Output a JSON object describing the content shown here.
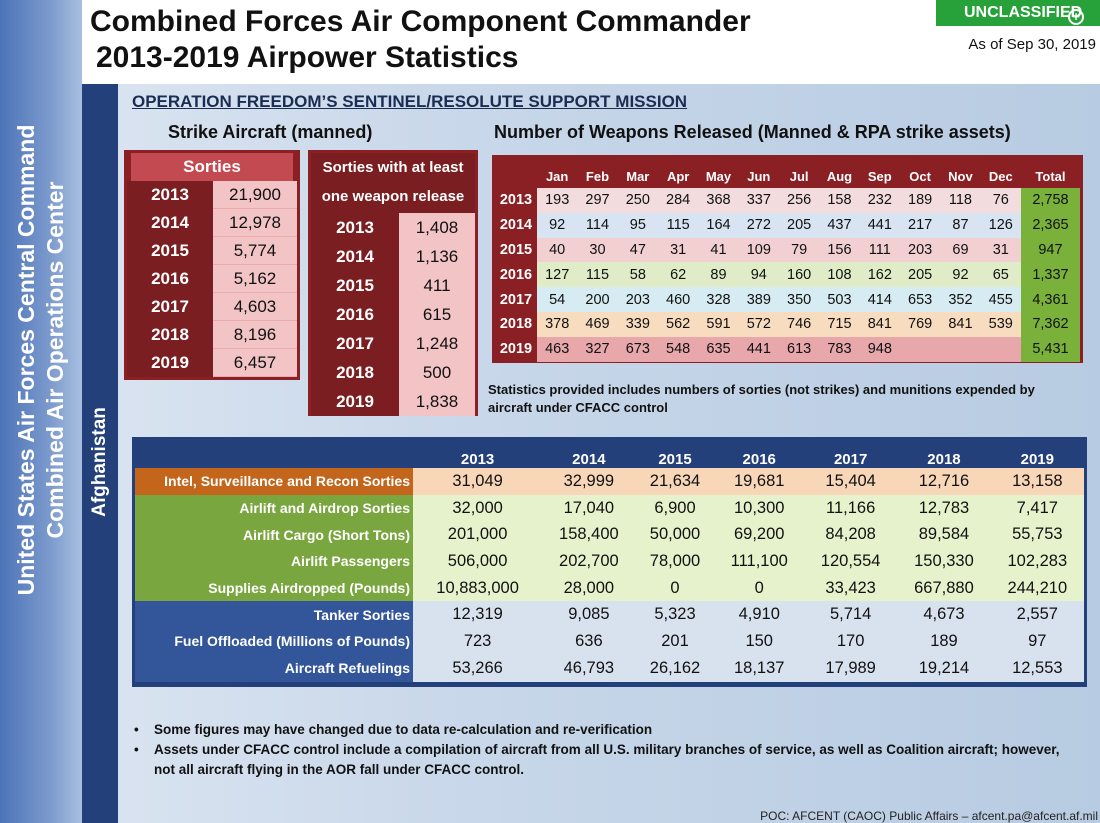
{
  "sidebar": {
    "line1": "United States Air Forces Central Command",
    "line2": "Combined Air Operations Center",
    "region": "Afghanistan"
  },
  "header": {
    "title_line1": "Combined Forces Air Component Commander",
    "title_line2": "2013-2019 Airpower Statistics",
    "classification": "UNCLASSIFIED",
    "as_of": "As of Sep 30, 2019"
  },
  "mission_title": "OPERATION FREEDOM’S SENTINEL/RESOLUTE SUPPORT MISSION",
  "strike_heading": "Strike Aircraft (manned)",
  "weapons_heading": "Number of Weapons Released (Manned & RPA strike assets)",
  "sorties": {
    "header": "Sorties",
    "rows": [
      {
        "year": "2013",
        "value": "21,900"
      },
      {
        "year": "2014",
        "value": "12,978"
      },
      {
        "year": "2015",
        "value": "5,774"
      },
      {
        "year": "2016",
        "value": "5,162"
      },
      {
        "year": "2017",
        "value": "4,603"
      },
      {
        "year": "2018",
        "value": "8,196"
      },
      {
        "year": "2019",
        "value": "6,457"
      }
    ]
  },
  "weapon_sorties": {
    "header_line1": "Sorties with at least",
    "header_line2": "one weapon release",
    "rows": [
      {
        "year": "2013",
        "value": "1,408"
      },
      {
        "year": "2014",
        "value": "1,136"
      },
      {
        "year": "2015",
        "value": "411"
      },
      {
        "year": "2016",
        "value": "615"
      },
      {
        "year": "2017",
        "value": "1,248"
      },
      {
        "year": "2018",
        "value": "500"
      },
      {
        "year": "2019",
        "value": "1,838"
      }
    ]
  },
  "weapons": {
    "months": [
      "Jan",
      "Feb",
      "Mar",
      "Apr",
      "May",
      "Jun",
      "Jul",
      "Aug",
      "Sep",
      "Oct",
      "Nov",
      "Dec",
      "Total"
    ],
    "rows": [
      {
        "year": "2013",
        "values": [
          "193",
          "297",
          "250",
          "284",
          "368",
          "337",
          "256",
          "158",
          "232",
          "189",
          "118",
          "76",
          "2,758"
        ]
      },
      {
        "year": "2014",
        "values": [
          "92",
          "114",
          "95",
          "115",
          "164",
          "272",
          "205",
          "437",
          "441",
          "217",
          "87",
          "126",
          "2,365"
        ]
      },
      {
        "year": "2015",
        "values": [
          "40",
          "30",
          "47",
          "31",
          "41",
          "109",
          "79",
          "156",
          "111",
          "203",
          "69",
          "31",
          "947"
        ]
      },
      {
        "year": "2016",
        "values": [
          "127",
          "115",
          "58",
          "62",
          "89",
          "94",
          "160",
          "108",
          "162",
          "205",
          "92",
          "65",
          "1,337"
        ]
      },
      {
        "year": "2017",
        "values": [
          "54",
          "200",
          "203",
          "460",
          "328",
          "389",
          "350",
          "503",
          "414",
          "653",
          "352",
          "455",
          "4,361"
        ]
      },
      {
        "year": "2018",
        "values": [
          "378",
          "469",
          "339",
          "562",
          "591",
          "572",
          "746",
          "715",
          "841",
          "769",
          "841",
          "539",
          "7,362"
        ]
      },
      {
        "year": "2019",
        "values": [
          "463",
          "327",
          "673",
          "548",
          "635",
          "441",
          "613",
          "783",
          "948",
          "",
          "",
          "",
          "5,431"
        ]
      }
    ]
  },
  "stats_note": "Statistics provided includes numbers of sorties (not strikes) and munitions expended by aircraft under CFACC control",
  "airpower": {
    "years": [
      "2013",
      "2014",
      "2015",
      "2016",
      "2017",
      "2018",
      "2019"
    ],
    "rows": [
      {
        "label": "Intel, Surveillance and Recon Sorties",
        "group": "isr",
        "values": [
          "31,049",
          "32,999",
          "21,634",
          "19,681",
          "15,404",
          "12,716",
          "13,158"
        ]
      },
      {
        "label": "Airlift and Airdrop Sorties",
        "group": "airlift",
        "values": [
          "32,000",
          "17,040",
          "6,900",
          "10,300",
          "11,166",
          "12,783",
          "7,417"
        ]
      },
      {
        "label": "Airlift Cargo (Short Tons)",
        "group": "airlift",
        "values": [
          "201,000",
          "158,400",
          "50,000",
          "69,200",
          "84,208",
          "89,584",
          "55,753"
        ]
      },
      {
        "label": "Airlift Passengers",
        "group": "airlift",
        "values": [
          "506,000",
          "202,700",
          "78,000",
          "111,100",
          "120,554",
          "150,330",
          "102,283"
        ]
      },
      {
        "label": "Supplies Airdropped (Pounds)",
        "group": "airlift",
        "values": [
          "10,883,000",
          "28,000",
          "0",
          "0",
          "33,423",
          "667,880",
          "244,210"
        ]
      },
      {
        "label": "Tanker Sorties",
        "group": "tank",
        "values": [
          "12,319",
          "9,085",
          "5,323",
          "4,910",
          "5,714",
          "4,673",
          "2,557"
        ]
      },
      {
        "label": "Fuel Offloaded (Millions of Pounds)",
        "group": "tank",
        "values": [
          "723",
          "636",
          "201",
          "150",
          "170",
          "189",
          "97"
        ]
      },
      {
        "label": "Aircraft Refuelings",
        "group": "tank",
        "values": [
          "53,266",
          "46,793",
          "26,162",
          "18,137",
          "17,989",
          "19,214",
          "12,553"
        ]
      }
    ]
  },
  "bullets": [
    "Some figures may have changed due to data re-calculation and re-verification",
    "Assets under CFACC control include a compilation of aircraft from all U.S.  military branches of service, as well as Coalition aircraft; however, not all aircraft flying in the AOR fall under CFACC control."
  ],
  "poc": "POC:  AFCENT (CAOC) Public Affairs – afcent.pa@afcent.af.mil"
}
